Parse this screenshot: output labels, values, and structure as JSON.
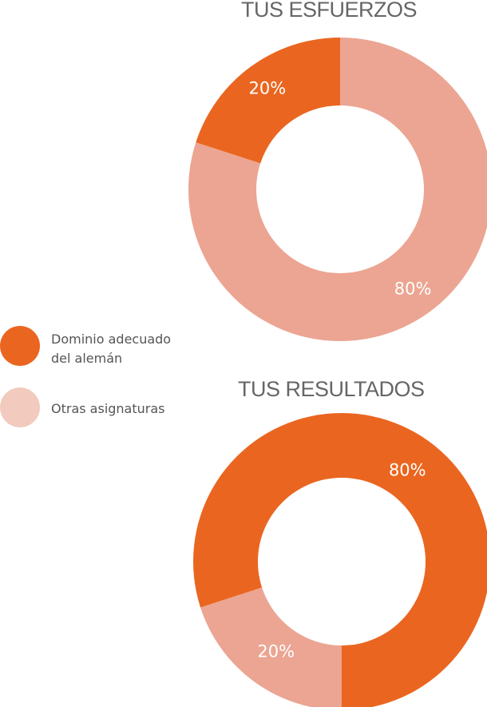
{
  "colors": {
    "primary": "#EA6620",
    "secondary": "#EBA592",
    "secondary_swatch": "#F3CABE",
    "title": "#666666",
    "legend_text": "#555555"
  },
  "legend": {
    "items": [
      {
        "label": "Dominio adecuado\ndel alemán",
        "color": "#EA6620"
      },
      {
        "label": "Otras asignaturas",
        "color": "#F3CABE"
      }
    ]
  },
  "chart_data": [
    {
      "type": "pie",
      "title": "TUS ESFUERZOS",
      "donut": true,
      "slices": [
        {
          "name": "Dominio adecuado del alemán",
          "value": 20,
          "label": "20%",
          "color": "#EA6620"
        },
        {
          "name": "Otras asignaturas",
          "value": 80,
          "label": "80%",
          "color": "#EBA592"
        }
      ]
    },
    {
      "type": "pie",
      "title": "TUS RESULTADOS",
      "donut": true,
      "slices": [
        {
          "name": "Dominio adecuado del alemán",
          "value": 80,
          "label": "80%",
          "color": "#EA6620"
        },
        {
          "name": "Otras asignaturas",
          "value": 20,
          "label": "20%",
          "color": "#EBA592"
        }
      ]
    }
  ]
}
